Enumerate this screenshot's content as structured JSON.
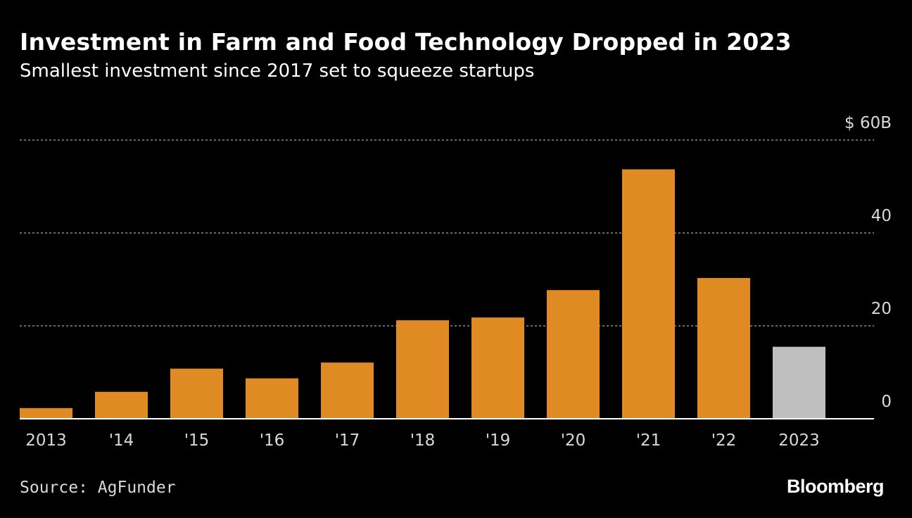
{
  "header": {
    "title": "Investment in Farm and Food Technology Dropped in 2023",
    "subtitle": "Smallest investment since 2017 set to squeeze startups"
  },
  "footer": {
    "source": "Source: AgFunder",
    "brand": "Bloomberg"
  },
  "colors": {
    "background": "#000000",
    "bar": "#e08a24",
    "bar_highlight": "#bfbfbf",
    "grid": "#8c8c8c",
    "text": "#ffffff",
    "axis_text": "#d9d9d9"
  },
  "chart_data": {
    "type": "bar",
    "title": "Investment in Farm and Food Technology Dropped in 2023",
    "subtitle": "Smallest investment since 2017 set to squeeze startups",
    "categories": [
      "2013",
      "'14",
      "'15",
      "'16",
      "'17",
      "'18",
      "'19",
      "'20",
      "'21",
      "'22",
      "2023"
    ],
    "values": [
      2.3,
      5.8,
      10.8,
      8.7,
      12.1,
      21.2,
      21.8,
      27.7,
      53.7,
      30.3,
      15.5
    ],
    "highlight_index": 10,
    "xlabel": "",
    "ylabel": "",
    "ylim": [
      0,
      60
    ],
    "yticks": [
      0,
      20,
      40,
      60
    ],
    "ytick_labels": [
      "0",
      "20",
      "40",
      "$ 60B"
    ],
    "grid": true,
    "y_axis_side": "right"
  }
}
